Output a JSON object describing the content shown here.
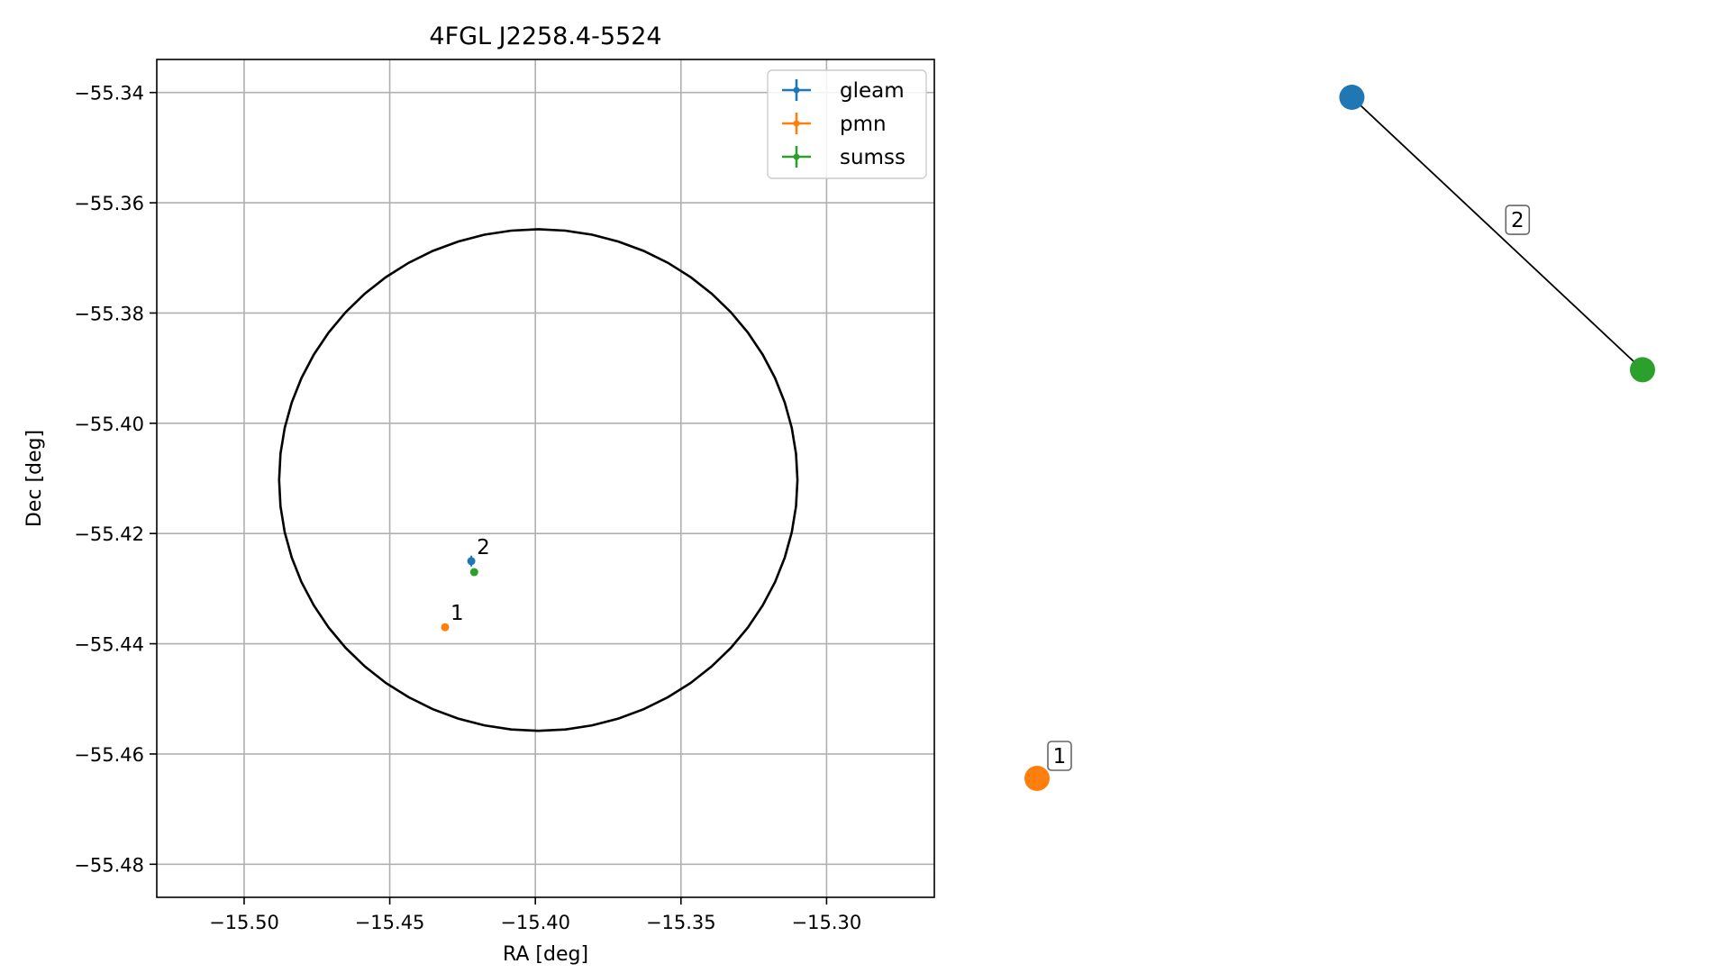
{
  "chart_data": [
    {
      "type": "scatter",
      "title": "4FGL J2258.4-5524",
      "xlabel": "RA [deg]",
      "ylabel": "Dec [deg]",
      "xlim": [
        -15.53,
        -15.263
      ],
      "ylim": [
        -55.486,
        -55.334
      ],
      "xticks": [
        -15.5,
        -15.45,
        -15.4,
        -15.35,
        -15.3
      ],
      "xtick_labels": [
        "−15.50",
        "−15.45",
        "−15.40",
        "−15.35",
        "−15.30"
      ],
      "yticks": [
        -55.34,
        -55.36,
        -55.38,
        -55.4,
        -55.42,
        -55.44,
        -55.46,
        -55.48
      ],
      "ytick_labels": [
        "−55.34",
        "−55.36",
        "−55.38",
        "−55.40",
        "−55.42",
        "−55.44",
        "−55.46",
        "−55.48"
      ],
      "grid": true,
      "legend_position": "top-right",
      "circle": {
        "center": [
          -15.399,
          -55.4103
        ],
        "radius_x": 0.089,
        "radius_y": 0.0455
      },
      "series": [
        {
          "name": "gleam",
          "color": "#1f77b4",
          "points": [
            {
              "x": -15.422,
              "y": -55.425
            }
          ]
        },
        {
          "name": "pmn",
          "color": "#ff7f0e",
          "points": [
            {
              "x": -15.431,
              "y": -55.437
            }
          ]
        },
        {
          "name": "sumss",
          "color": "#2ca02c",
          "points": [
            {
              "x": -15.421,
              "y": -55.427
            }
          ]
        }
      ],
      "annotations": [
        {
          "text": "1",
          "x": -15.431,
          "y": -55.437
        },
        {
          "text": "2",
          "x": -15.422,
          "y": -55.425
        }
      ]
    },
    {
      "type": "network",
      "nodes": [
        {
          "id": "gleam",
          "color": "#1f77b4",
          "pos": [
            0.52,
            1.0
          ]
        },
        {
          "id": "sumss",
          "color": "#2ca02c",
          "pos": [
            1.0,
            0.0
          ]
        },
        {
          "id": "pmn",
          "color": "#ff7f0e",
          "pos": [
            0.0,
            -1.5
          ]
        }
      ],
      "edges": [
        {
          "source": "gleam",
          "target": "sumss",
          "label": "2"
        }
      ],
      "node_labels": [
        {
          "node": "pmn",
          "text": "1"
        }
      ]
    }
  ]
}
